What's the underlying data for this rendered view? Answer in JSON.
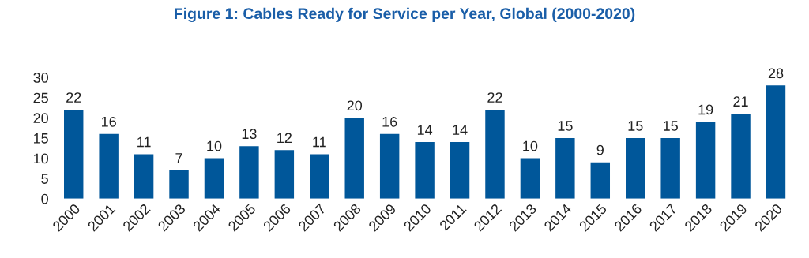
{
  "chart_data": {
    "type": "bar",
    "title": "Figure 1: Cables Ready for Service per Year, Global (2000-2020)",
    "categories": [
      "2000",
      "2001",
      "2002",
      "2003",
      "2004",
      "2005",
      "2006",
      "2007",
      "2008",
      "2009",
      "2010",
      "2011",
      "2012",
      "2013",
      "2014",
      "2015",
      "2016",
      "2017",
      "2018",
      "2019",
      "2020"
    ],
    "values": [
      22,
      16,
      11,
      7,
      10,
      13,
      12,
      11,
      20,
      16,
      14,
      14,
      22,
      10,
      15,
      9,
      15,
      15,
      19,
      21,
      28
    ],
    "color": "#00579a",
    "ylim": [
      0,
      30
    ],
    "yticks": [
      0,
      5,
      10,
      15,
      20,
      25,
      30
    ],
    "grid": false,
    "data_labels": true
  }
}
